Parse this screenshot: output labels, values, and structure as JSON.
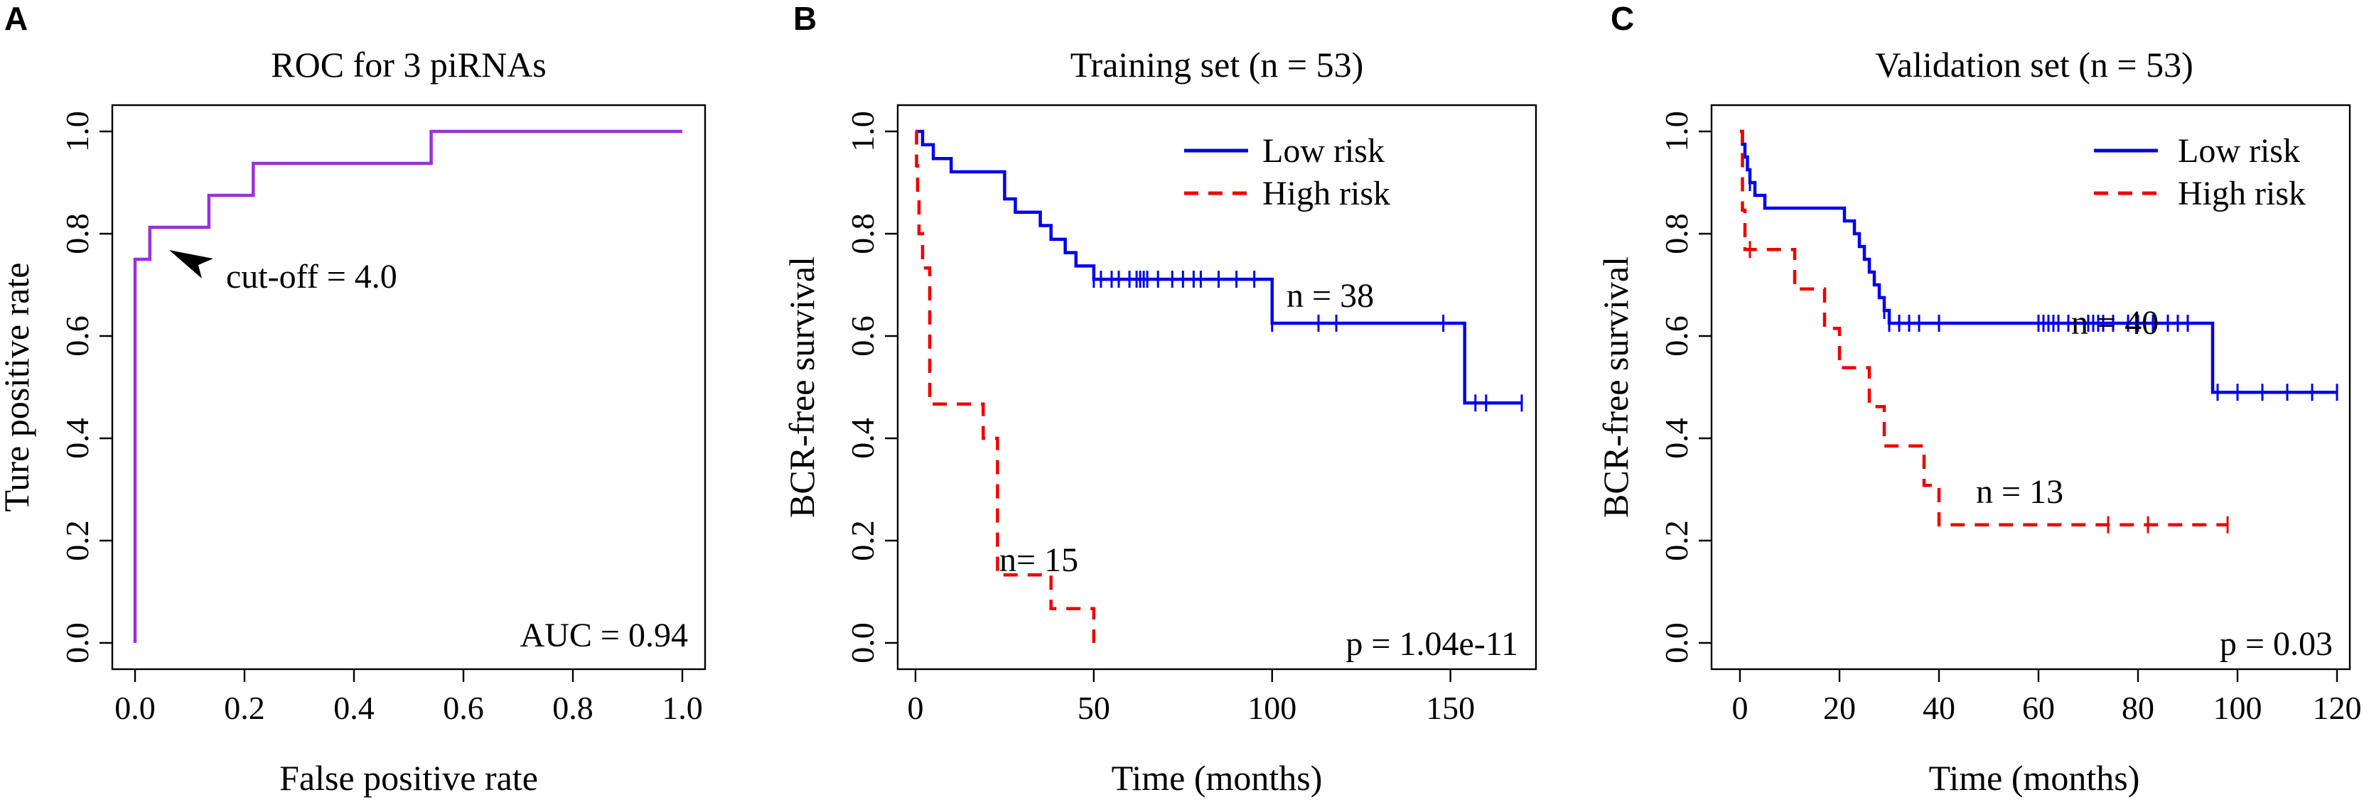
{
  "chart_data": [
    {
      "panel": "A",
      "type": "line",
      "title": "ROC for 3 piRNAs",
      "xlabel": "False positive rate",
      "ylabel": "Ture positive rate",
      "xlim": [
        0,
        1
      ],
      "ylim": [
        0,
        1
      ],
      "xticks": [
        "0.0",
        "0.2",
        "0.4",
        "0.6",
        "0.8",
        "1.0"
      ],
      "yticks": [
        "0.0",
        "0.2",
        "0.4",
        "0.6",
        "0.8",
        "1.0"
      ],
      "color": "#9b30d9",
      "series": [
        {
          "name": "ROC",
          "x": [
            0,
            0,
            0,
            0.027,
            0.027,
            0.135,
            0.135,
            0.216,
            0.216,
            0.541,
            0.541,
            1.0
          ],
          "y": [
            0,
            0.75,
            0.75,
            0.75,
            0.8125,
            0.8125,
            0.875,
            0.875,
            0.9375,
            0.9375,
            1.0,
            1.0
          ]
        }
      ],
      "annotations": {
        "cutoff_label": "cut-off = 4.0",
        "cutoff_point": [
          0.027,
          0.8125
        ],
        "auc_label": "AUC = 0.94"
      }
    },
    {
      "panel": "B",
      "type": "line",
      "title": "Training set (n = 53)",
      "xlabel": "Time (months)",
      "ylabel": "BCR-free survival",
      "xlim": [
        0,
        170
      ],
      "ylim": [
        0,
        1
      ],
      "xticks": [
        "0",
        "50",
        "100",
        "150"
      ],
      "yticks": [
        "0.0",
        "0.2",
        "0.4",
        "0.6",
        "0.8",
        "1.0"
      ],
      "legend": [
        "Low risk",
        "High risk"
      ],
      "series": [
        {
          "name": "Low risk",
          "color": "#0000ee",
          "style": "solid",
          "x": [
            0,
            2,
            5,
            10,
            25,
            28,
            35,
            38,
            42,
            45,
            50,
            100,
            154,
            170
          ],
          "y": [
            1.0,
            0.974,
            0.947,
            0.921,
            0.868,
            0.842,
            0.816,
            0.789,
            0.763,
            0.737,
            0.711,
            0.625,
            0.469,
            0.469
          ],
          "censored_x": [
            50,
            52,
            55,
            57,
            60,
            62,
            63,
            64,
            65,
            68,
            72,
            75,
            78,
            80,
            85,
            90,
            95,
            100,
            113,
            118,
            148,
            157,
            160,
            170
          ],
          "n_label": "n = 38"
        },
        {
          "name": "High risk",
          "color": "#ee0000",
          "style": "dashed",
          "x": [
            0,
            0.3,
            0.6,
            1,
            2,
            4,
            19,
            23,
            31,
            38,
            44,
            50
          ],
          "y": [
            1.0,
            0.933,
            0.867,
            0.8,
            0.733,
            0.467,
            0.4,
            0.133,
            0.133,
            0.067,
            0.067,
            0.0
          ],
          "censored_x": [],
          "n_label": "n= 15"
        }
      ],
      "annotations": {
        "p_label": "p = 1.04e-11"
      }
    },
    {
      "panel": "C",
      "type": "line",
      "title": "Validation set (n = 53)",
      "xlabel": "Time (months)",
      "ylabel": "BCR-free survival",
      "xlim": [
        0,
        120
      ],
      "ylim": [
        0,
        1
      ],
      "xticks": [
        "0",
        "20",
        "40",
        "60",
        "80",
        "100",
        "120"
      ],
      "yticks": [
        "0.0",
        "0.2",
        "0.4",
        "0.6",
        "0.8",
        "1.0"
      ],
      "legend": [
        "Low risk",
        "High risk"
      ],
      "series": [
        {
          "name": "Low risk",
          "color": "#0000ee",
          "style": "solid",
          "x": [
            0,
            0.5,
            1,
            1.5,
            2,
            3,
            5,
            21,
            23,
            24,
            25,
            26,
            27,
            28,
            29,
            30,
            95,
            120
          ],
          "y": [
            1.0,
            0.975,
            0.95,
            0.925,
            0.9,
            0.875,
            0.85,
            0.825,
            0.8,
            0.775,
            0.75,
            0.725,
            0.7,
            0.675,
            0.65,
            0.625,
            0.49,
            0.49
          ],
          "censored_x": [
            2,
            29,
            30,
            32,
            34,
            36,
            40,
            60,
            61,
            62,
            63,
            64,
            66,
            70,
            71,
            72,
            73,
            75,
            78,
            80,
            83,
            86,
            88,
            90,
            96,
            100,
            105,
            110,
            115,
            120
          ],
          "n_label": "n = 40"
        },
        {
          "name": "High risk",
          "color": "#ee0000",
          "style": "dashed",
          "x": [
            0,
            0.5,
            1,
            11,
            17,
            20,
            26,
            29,
            37,
            40,
            98
          ],
          "y": [
            1.0,
            0.846,
            0.769,
            0.692,
            0.615,
            0.538,
            0.462,
            0.385,
            0.308,
            0.231,
            0.231
          ],
          "censored_x": [
            2,
            74,
            82,
            98
          ],
          "n_label": "n = 13"
        }
      ],
      "annotations": {
        "p_label": "p = 0.03"
      }
    }
  ]
}
